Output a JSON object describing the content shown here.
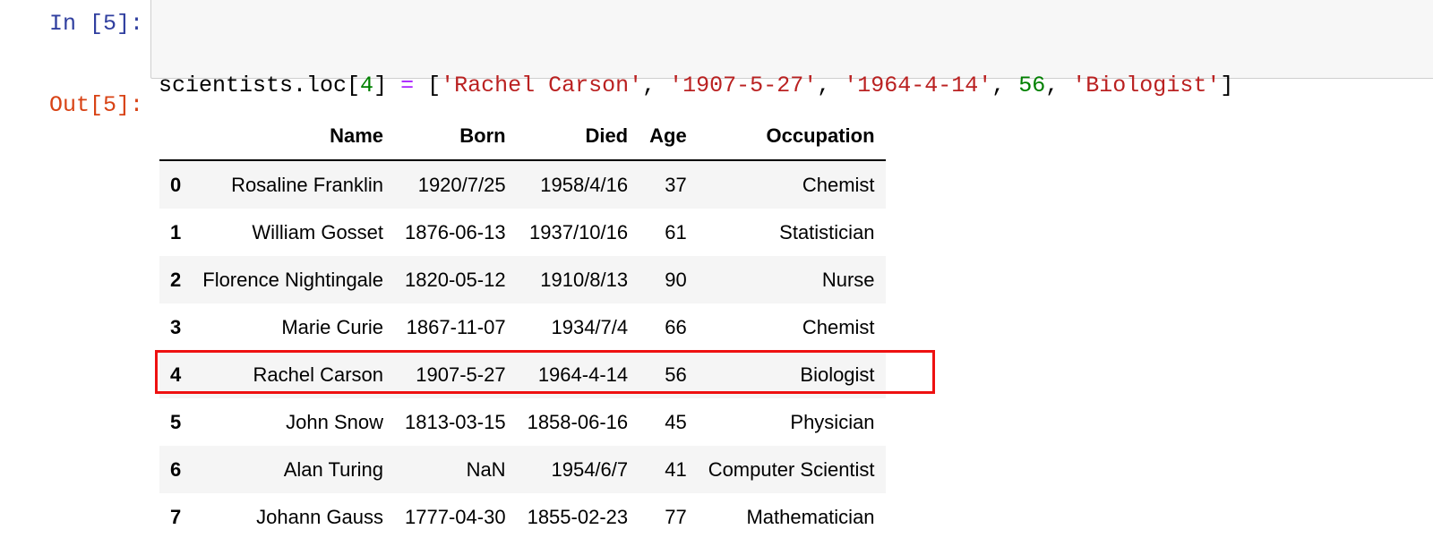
{
  "cell_in": {
    "prompt": "In [5]:",
    "code_line_2": "scientists"
  },
  "cell_out": {
    "prompt": "Out[5]:"
  },
  "code_tokens": {
    "t1": "scientists.loc[",
    "t2": "4",
    "t3": "] ",
    "t4": "=",
    "t5": " [",
    "t6": "'Rachel Carson'",
    "t7": ", ",
    "t8": "'1907-5-27'",
    "t9": ", ",
    "t10": "'1964-4-14'",
    "t11": ", ",
    "t12": "56",
    "t13": ", ",
    "t14": "'Biologist'",
    "t15": "]"
  },
  "colors": {
    "in_prompt": "#303f9f",
    "out_prompt": "#d84315",
    "number": "#008000",
    "string": "#ba2121",
    "operator": "#aa22ff",
    "highlight": "#ee1111"
  },
  "table": {
    "columns": [
      "",
      "Name",
      "Born",
      "Died",
      "Age",
      "Occupation"
    ],
    "rows": [
      [
        "0",
        "Rosaline Franklin",
        "1920/7/25",
        "1958/4/16",
        "37",
        "Chemist"
      ],
      [
        "1",
        "William Gosset",
        "1876-06-13",
        "1937/10/16",
        "61",
        "Statistician"
      ],
      [
        "2",
        "Florence Nightingale",
        "1820-05-12",
        "1910/8/13",
        "90",
        "Nurse"
      ],
      [
        "3",
        "Marie Curie",
        "1867-11-07",
        "1934/7/4",
        "66",
        "Chemist"
      ],
      [
        "4",
        "Rachel Carson",
        "1907-5-27",
        "1964-4-14",
        "56",
        "Biologist"
      ],
      [
        "5",
        "John Snow",
        "1813-03-15",
        "1858-06-16",
        "45",
        "Physician"
      ],
      [
        "6",
        "Alan Turing",
        "NaN",
        "1954/6/7",
        "41",
        "Computer Scientist"
      ],
      [
        "7",
        "Johann Gauss",
        "1777-04-30",
        "1855-02-23",
        "77",
        "Mathematician"
      ]
    ],
    "highlighted_row_index": 4
  }
}
